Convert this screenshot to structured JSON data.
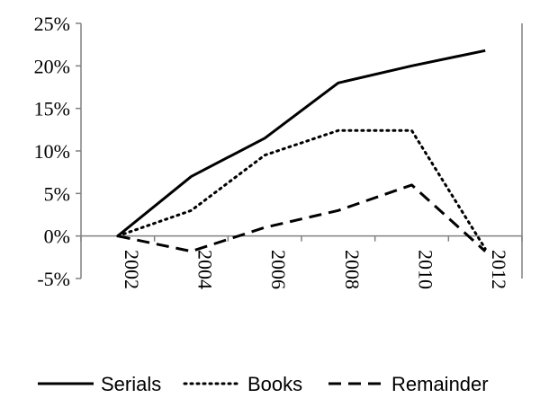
{
  "chart_data": {
    "type": "line",
    "categories": [
      "2002",
      "2004",
      "2006",
      "2008",
      "2010",
      "2012"
    ],
    "ylim": [
      -5,
      25
    ],
    "yticks": [
      -5,
      0,
      5,
      10,
      15,
      20,
      25
    ],
    "ytick_labels": [
      "-5%",
      "0%",
      "5%",
      "10%",
      "15%",
      "20%",
      "25%"
    ],
    "grid": false,
    "legend_position": "bottom",
    "series": [
      {
        "name": "Serials",
        "style": "solid",
        "color": "#000000",
        "values": [
          0,
          7,
          11.5,
          18,
          20,
          21.8
        ]
      },
      {
        "name": "Books",
        "style": "dotted",
        "color": "#000000",
        "values": [
          0,
          3,
          9.5,
          12.4,
          12.4,
          -1.5
        ]
      },
      {
        "name": "Remainder",
        "style": "dashed",
        "color": "#000000",
        "values": [
          0,
          -1.8,
          1,
          3,
          6,
          -1.8
        ]
      }
    ]
  }
}
